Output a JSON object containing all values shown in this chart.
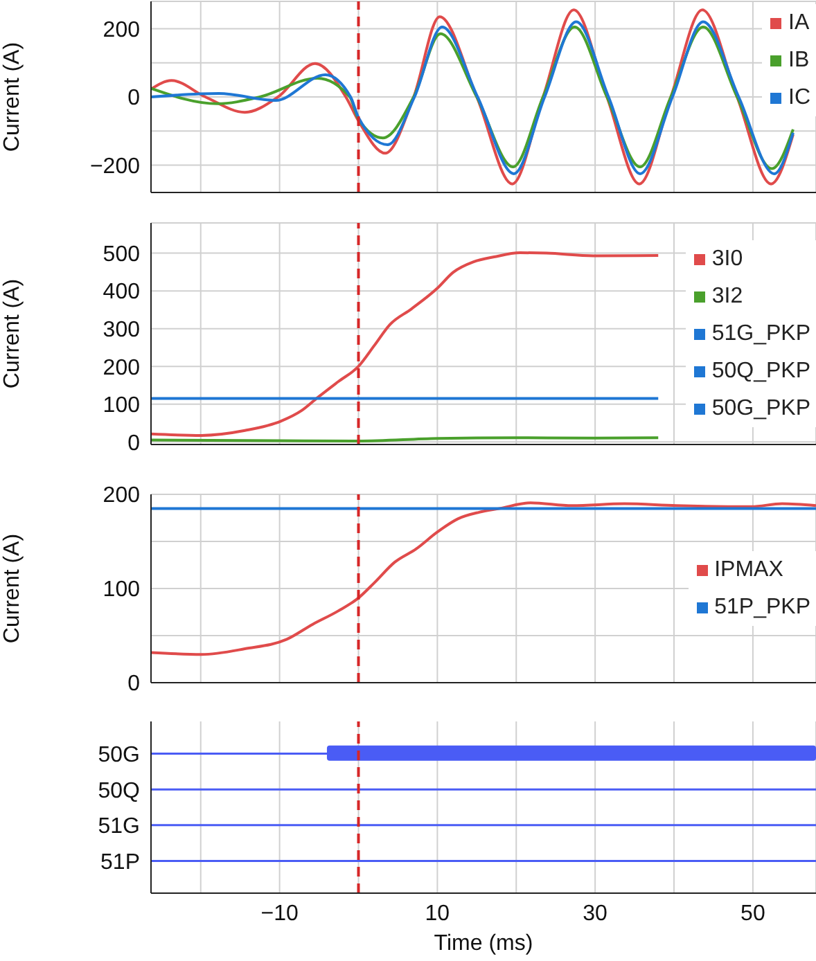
{
  "chart_data": [
    {
      "type": "line",
      "ylabel": "Current (A)",
      "xlim": [
        -26.3,
        58
      ],
      "xticks": [
        -20,
        -10,
        0,
        10,
        20,
        30,
        40,
        50
      ],
      "ylim": [
        -280,
        280
      ],
      "yticks": [
        {
          "value": -200,
          "label": "−200"
        },
        {
          "value": -100,
          "label": null
        },
        0,
        {
          "value": 100,
          "label": null
        },
        200
      ],
      "tick_labels": "y",
      "grid": true,
      "legend": "top right",
      "line_style": "solid",
      "marker": "none",
      "ref_lines": [
        {
          "axis": "x",
          "value": 0,
          "color": "#d62728",
          "line_style": "dashed"
        }
      ],
      "series": [
        {
          "name": "IA",
          "color": "#e04b4b",
          "x": [
            -26.3,
            -23.7,
            -19.4,
            -14.4,
            -10.2,
            -5.5,
            -1.6,
            0,
            3.4,
            7,
            10.3,
            15,
            19.5,
            23.4,
            27.3,
            31.5,
            35.6,
            39.6,
            43.6,
            48,
            52.3,
            55.1
          ],
          "values": [
            23,
            48,
            0,
            -45,
            0,
            98,
            0,
            -70,
            -165,
            0,
            235,
            0,
            -255,
            0,
            255,
            0,
            -255,
            0,
            255,
            0,
            -255,
            -110
          ]
        },
        {
          "name": "IB",
          "color": "#4aa02c",
          "x": [
            -26.3,
            -17.9,
            -12.5,
            -5.2,
            -1.1,
            0,
            3.1,
            7,
            10.4,
            15,
            19.6,
            23.4,
            27.4,
            31.5,
            35.7,
            39.6,
            43.7,
            48,
            52.4,
            55.1
          ],
          "values": [
            25,
            -20,
            0,
            55,
            0,
            -65,
            -120,
            0,
            185,
            0,
            -205,
            0,
            205,
            0,
            -205,
            0,
            205,
            0,
            -210,
            -95
          ]
        },
        {
          "name": "IC",
          "color": "#1f77d4",
          "x": [
            -26.3,
            -17.7,
            -10.5,
            -4.2,
            -1,
            0,
            3.7,
            7.1,
            10.6,
            15.1,
            19.7,
            23.6,
            27.6,
            31.7,
            35.7,
            39.8,
            43.7,
            48.2,
            52.7,
            55.1
          ],
          "values": [
            0,
            10,
            -10,
            65,
            0,
            -60,
            -140,
            0,
            205,
            0,
            -225,
            0,
            220,
            0,
            -225,
            0,
            220,
            0,
            -225,
            -105
          ]
        }
      ]
    },
    {
      "type": "line",
      "ylabel": "Current (A)",
      "xlim": [
        -26.3,
        58
      ],
      "xticks": [
        -20,
        -10,
        0,
        10,
        20,
        30,
        40,
        50
      ],
      "ylim": [
        -7,
        580
      ],
      "yticks": [
        0,
        100,
        200,
        300,
        400,
        500
      ],
      "tick_labels": "y",
      "grid": true,
      "legend": "right",
      "line_style": "solid",
      "marker": "none",
      "ref_lines": [
        {
          "axis": "x",
          "value": 0,
          "color": "#d62728",
          "line_style": "dashed"
        }
      ],
      "series": [
        {
          "name": "3I0",
          "color": "#e04b4b",
          "x": [
            -26.3,
            -19.9,
            -14.4,
            -9.8,
            -7.2,
            -5.2,
            -2.6,
            0,
            2,
            4,
            6.7,
            10,
            12,
            14.6,
            17.2,
            20.5,
            23.8,
            29.8,
            38
          ],
          "values": [
            21,
            17,
            30,
            55,
            83,
            117,
            159,
            200,
            255,
            311,
            352,
            407,
            449,
            477,
            490,
            501,
            500,
            493,
            494
          ]
        },
        {
          "name": "3I2",
          "color": "#4aa02c",
          "x": [
            -26.3,
            -10,
            0,
            10,
            20,
            30,
            38
          ],
          "values": [
            5,
            3,
            2,
            9,
            11,
            10,
            11
          ]
        },
        {
          "name": "51G_PKP",
          "color": "#1f77d4",
          "x": [
            -26.3,
            38
          ],
          "values": [
            115,
            115
          ]
        },
        {
          "name": "50Q_PKP",
          "color": "#1f77d4",
          "values": [
            null
          ]
        },
        {
          "name": "50G_PKP",
          "color": "#1f77d4",
          "values": [
            null
          ]
        }
      ]
    },
    {
      "type": "line",
      "ylabel": "Current (A)",
      "xlim": [
        -26.3,
        58
      ],
      "xticks": [
        -20,
        -10,
        0,
        10,
        20,
        30,
        40,
        50
      ],
      "ylim": [
        0,
        200
      ],
      "yticks": [
        0,
        {
          "value": 50,
          "label": null
        },
        100,
        {
          "value": 150,
          "label": null
        },
        200
      ],
      "tick_labels": "y",
      "grid": true,
      "legend": "right",
      "line_style": "solid",
      "marker": "none",
      "ref_lines": [
        {
          "axis": "x",
          "value": 0,
          "color": "#d62728",
          "line_style": "dashed"
        }
      ],
      "series": [
        {
          "name": "IPMAX",
          "color": "#e04b4b",
          "x": [
            -26.3,
            -19.9,
            -14.4,
            -9.1,
            -5.8,
            -2.6,
            0,
            2,
            4.6,
            7.3,
            10,
            12.6,
            15.3,
            17.9,
            21.8,
            27.1,
            33.7,
            40.3,
            49.8,
            53.7,
            58
          ],
          "values": [
            32,
            30,
            36,
            46,
            62,
            76,
            90,
            106,
            128,
            142,
            160,
            174,
            181,
            185,
            191,
            188,
            190,
            188,
            187,
            190,
            188
          ]
        },
        {
          "name": "51P_PKP",
          "color": "#1f77d4",
          "x": [
            -26.3,
            58
          ],
          "values": [
            185,
            185
          ]
        }
      ]
    },
    {
      "type": "bar",
      "orientation": "horizontal",
      "xlabel": "Time (ms)",
      "categories": [
        "50G",
        "50Q",
        "51G",
        "51P"
      ],
      "base": [
        -4,
        null,
        null,
        null
      ],
      "values": [
        62,
        null,
        null,
        null
      ],
      "color": "#4a5cf5",
      "xlim": [
        -26.3,
        58
      ],
      "xticks": [
        {
          "value": -20,
          "label": null
        },
        {
          "value": -10,
          "label": "−10"
        },
        {
          "value": 0,
          "label": null
        },
        10,
        {
          "value": 20,
          "label": null
        },
        30,
        {
          "value": 40,
          "label": null
        },
        50
      ],
      "grid": "x",
      "ref_lines": [
        {
          "axis": "y",
          "value": "50G",
          "color": "#4a5cf5"
        },
        {
          "axis": "y",
          "value": "50Q",
          "color": "#4a5cf5"
        },
        {
          "axis": "y",
          "value": "51G",
          "color": "#4a5cf5"
        },
        {
          "axis": "y",
          "value": "51P",
          "color": "#4a5cf5"
        },
        {
          "axis": "x",
          "value": 0,
          "color": "#d62728",
          "line_style": "dashed"
        }
      ]
    }
  ]
}
